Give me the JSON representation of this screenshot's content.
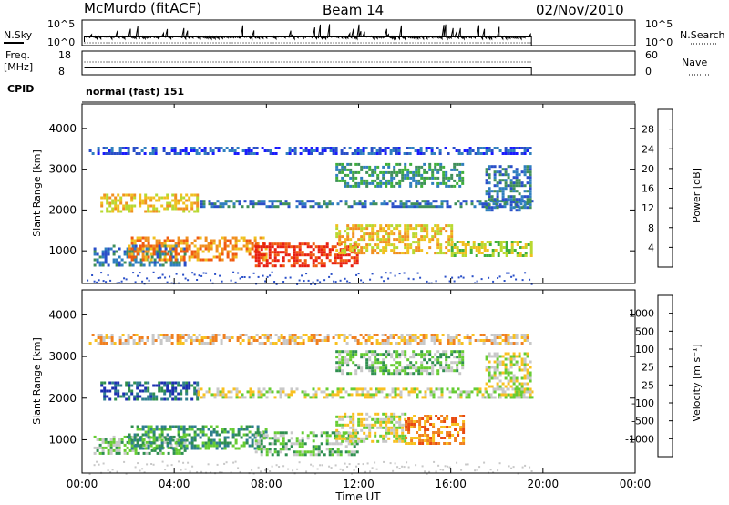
{
  "header": {
    "station": "McMurdo (fitACF)",
    "beam": "Beam 14",
    "date": "02/Nov/2010"
  },
  "top_panels": {
    "nsky_label": "N.Sky",
    "nsky_ticks": [
      "10^5",
      "10^0"
    ],
    "nsearch_label": "N.Search",
    "nsearch_ticks": [
      "10^5",
      "10^0"
    ],
    "freq_label_1": "Freq.",
    "freq_label_2": "[MHz]",
    "freq_ticks": [
      "18",
      "8"
    ],
    "nave_label": "Nave",
    "nave_ticks": [
      "60",
      "0"
    ],
    "cpid_label": "CPID",
    "cpid_value": "normal (fast) 151"
  },
  "chart_data": [
    {
      "type": "heatmap",
      "name": "power",
      "ylabel": "Slant Range [km]",
      "yticks": [
        "4000",
        "3000",
        "2000",
        "1000"
      ],
      "ylim": [
        200,
        4600
      ],
      "xlim": [
        0,
        24
      ],
      "colorbar_label": "Power [dB]",
      "colorbar_ticks": [
        "28",
        "24",
        "20",
        "16",
        "12",
        "8",
        "4"
      ],
      "colorbar_colors": [
        "#1a1aff",
        "#2a4fc8",
        "#2f7fbf",
        "#3f8f5a",
        "#3fb03a",
        "#b8d830",
        "#f0c020",
        "#f09020",
        "#f05a10",
        "#e82010"
      ],
      "echo_bands": [
        {
          "t0": 0.3,
          "t1": 19.5,
          "r0": 3350,
          "r1": 3550,
          "level": 1
        },
        {
          "t0": 0.8,
          "t1": 5.0,
          "r0": 1950,
          "r1": 2400,
          "level": 6
        },
        {
          "t0": 5.0,
          "t1": 19.5,
          "r0": 2050,
          "r1": 2250,
          "level": 2
        },
        {
          "t0": 0.5,
          "t1": 4.5,
          "r0": 650,
          "r1": 1150,
          "level": 2
        },
        {
          "t0": 2.0,
          "t1": 8.0,
          "r0": 800,
          "r1": 1350,
          "level": 7
        },
        {
          "t0": 7.5,
          "t1": 12.0,
          "r0": 650,
          "r1": 1200,
          "level": 9
        },
        {
          "t0": 11.0,
          "t1": 16.0,
          "r0": 950,
          "r1": 1650,
          "level": 6
        },
        {
          "t0": 16.0,
          "t1": 19.5,
          "r0": 850,
          "r1": 1250,
          "level": 5
        },
        {
          "t0": 11.0,
          "t1": 16.5,
          "r0": 2600,
          "r1": 3150,
          "level": 3
        },
        {
          "t0": 17.5,
          "t1": 19.5,
          "r0": 2000,
          "r1": 3100,
          "level": 2
        }
      ]
    },
    {
      "type": "heatmap",
      "name": "velocity",
      "ylabel": "Slant Range [km]",
      "yticks": [
        "4000",
        "3000",
        "2000",
        "1000"
      ],
      "ylim": [
        200,
        4600
      ],
      "xlim": [
        0,
        24
      ],
      "xticks": [
        "00:00",
        "04:00",
        "08:00",
        "12:00",
        "16:00",
        "20:00",
        "00:00"
      ],
      "xlabel": "Time UT",
      "colorbar_label": "Velocity [m s⁻¹]",
      "colorbar_ticks": [
        "1000",
        "500",
        "100",
        "25",
        "-25",
        "-100",
        "-500",
        "-1000"
      ],
      "colorbar_colors": [
        "#1c2fb0",
        "#2f7f8f",
        "#2f8f4f",
        "#66cc33",
        "#c8c8c8",
        "#f8c020",
        "#f08020",
        "#e84a10",
        "#e81010"
      ],
      "echo_bands": [
        {
          "t0": 0.3,
          "t1": 19.5,
          "r0": 3350,
          "r1": 3550,
          "level": 5
        },
        {
          "t0": 0.8,
          "t1": 5.0,
          "r0": 1950,
          "r1": 2400,
          "level": 1
        },
        {
          "t0": 5.0,
          "t1": 19.5,
          "r0": 2050,
          "r1": 2250,
          "level": 4
        },
        {
          "t0": 0.5,
          "t1": 4.5,
          "r0": 700,
          "r1": 1100,
          "level": 3
        },
        {
          "t0": 2.0,
          "t1": 8.0,
          "r0": 800,
          "r1": 1350,
          "level": 2
        },
        {
          "t0": 7.5,
          "t1": 12.0,
          "r0": 650,
          "r1": 1200,
          "level": 3
        },
        {
          "t0": 11.0,
          "t1": 14.0,
          "r0": 950,
          "r1": 1650,
          "level": 4
        },
        {
          "t0": 14.0,
          "t1": 16.5,
          "r0": 900,
          "r1": 1600,
          "level": 6
        },
        {
          "t0": 11.0,
          "t1": 16.5,
          "r0": 2600,
          "r1": 3150,
          "level": 3
        },
        {
          "t0": 17.5,
          "t1": 19.5,
          "r0": 2000,
          "r1": 3100,
          "level": 4
        }
      ]
    }
  ]
}
